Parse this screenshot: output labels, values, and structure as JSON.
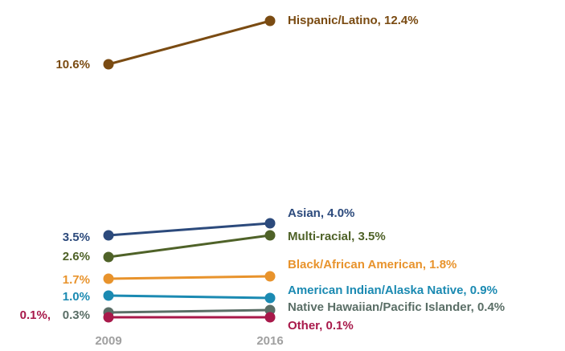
{
  "chart_data": {
    "type": "slope",
    "categories": [
      "2009",
      "2016"
    ],
    "series": [
      {
        "color": "#7a4b12",
        "values": [
          10.6,
          12.4
        ],
        "value_labels": [
          "10.6%",
          "Hispanic/Latino, 12.4%"
        ]
      },
      {
        "color": "#2c4a7c",
        "values": [
          3.5,
          4.0
        ],
        "value_labels": [
          "3.5%",
          "Asian, 4.0%"
        ]
      },
      {
        "color": "#4f6228",
        "values": [
          2.6,
          3.5
        ],
        "value_labels": [
          "2.6%",
          "Multi-racial, 3.5%"
        ]
      },
      {
        "color": "#e8932c",
        "values": [
          1.7,
          1.8
        ],
        "value_labels": [
          "1.7%",
          "Black/African American, 1.8%"
        ]
      },
      {
        "color": "#1b8ab2",
        "values": [
          1.0,
          0.9
        ],
        "value_labels": [
          "1.0%",
          "American Indian/Alaska Native, 0.9%"
        ]
      },
      {
        "color": "#5a6e66",
        "values": [
          0.3,
          0.4
        ],
        "value_labels": [
          "0.3%",
          "Native Hawaiian/Pacific Islander, 0.4%"
        ]
      },
      {
        "color": "#a8194a",
        "values": [
          0.1,
          0.1
        ],
        "value_labels": [
          "0.1%,",
          "Other, 0.1%"
        ]
      }
    ]
  }
}
